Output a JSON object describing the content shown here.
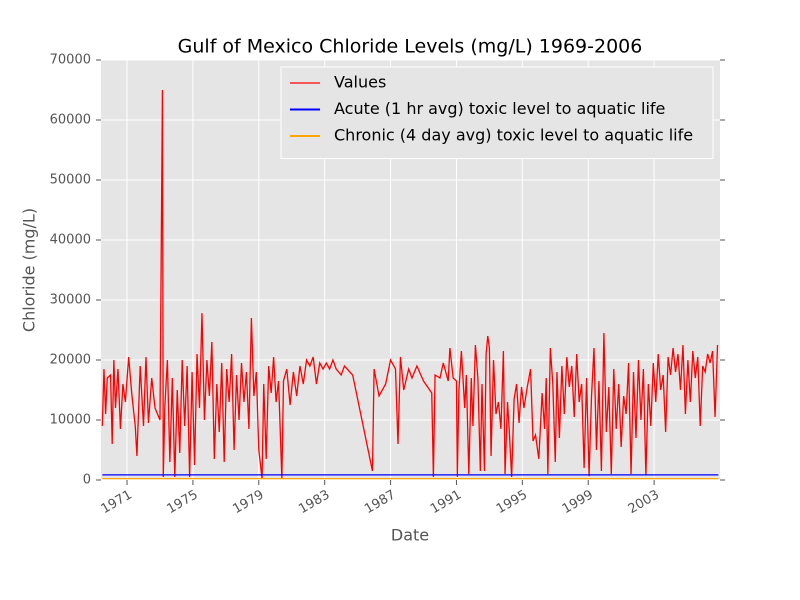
{
  "chart_data": {
    "type": "line",
    "title": "Gulf of Mexico Chloride Levels (mg/L) 1969-2006",
    "x_label": "Date",
    "y_label": "Chloride (mg/L)",
    "xlim": [
      1969.42,
      2007.0
    ],
    "xticks": [
      1971,
      1975,
      1979,
      1983,
      1987,
      1991,
      1995,
      1999,
      2003
    ],
    "ylim": [
      0,
      70000
    ],
    "yticks": [
      0,
      10000,
      20000,
      30000,
      40000,
      50000,
      60000,
      70000
    ],
    "grid": true,
    "legend": "upper right",
    "series": [
      {
        "name": "Values",
        "color": "#ff0000",
        "x": [
          1969.5,
          1969.6,
          1969.7,
          1969.8,
          1970.0,
          1970.1,
          1970.2,
          1970.3,
          1970.45,
          1970.6,
          1970.75,
          1970.9,
          1971.1,
          1971.3,
          1971.5,
          1971.6,
          1971.8,
          1972.0,
          1972.15,
          1972.3,
          1972.5,
          1972.7,
          1973.0,
          1973.15,
          1973.2,
          1973.3,
          1973.45,
          1973.6,
          1973.75,
          1973.9,
          1974.05,
          1974.2,
          1974.35,
          1974.5,
          1974.65,
          1974.8,
          1974.95,
          1975.1,
          1975.25,
          1975.4,
          1975.55,
          1975.7,
          1975.85,
          1976.0,
          1976.15,
          1976.3,
          1976.45,
          1976.6,
          1976.75,
          1976.9,
          1977.05,
          1977.2,
          1977.35,
          1977.5,
          1977.65,
          1977.8,
          1977.95,
          1978.1,
          1978.25,
          1978.4,
          1978.55,
          1978.7,
          1978.85,
          1979.0,
          1979.2,
          1979.3,
          1979.45,
          1979.6,
          1979.75,
          1979.9,
          1980.05,
          1980.2,
          1980.4,
          1980.5,
          1980.7,
          1980.9,
          1981.1,
          1981.3,
          1981.5,
          1981.7,
          1981.9,
          1982.1,
          1982.3,
          1982.5,
          1982.7,
          1982.9,
          1983.1,
          1983.3,
          1983.5,
          1983.7,
          1984.0,
          1984.2,
          1984.7,
          1985.9,
          1986.0,
          1986.3,
          1986.7,
          1987.0,
          1987.3,
          1987.45,
          1987.6,
          1987.8,
          1988.1,
          1988.3,
          1988.6,
          1989.0,
          1989.5,
          1989.6,
          1989.7,
          1990.0,
          1990.2,
          1990.5,
          1990.6,
          1990.8,
          1991.0,
          1991.05,
          1991.15,
          1991.3,
          1991.5,
          1991.6,
          1991.75,
          1991.9,
          1992.0,
          1992.15,
          1992.3,
          1992.45,
          1992.55,
          1992.7,
          1992.8,
          1992.9,
          1993.0,
          1993.1,
          1993.25,
          1993.4,
          1993.55,
          1993.7,
          1993.85,
          1993.95,
          1994.1,
          1994.2,
          1994.35,
          1994.5,
          1994.65,
          1994.8,
          1994.95,
          1995.1,
          1995.3,
          1995.5,
          1995.65,
          1995.8,
          1996.0,
          1996.2,
          1996.35,
          1996.45,
          1996.55,
          1996.7,
          1996.85,
          1997.0,
          1997.1,
          1997.25,
          1997.4,
          1997.55,
          1997.7,
          1997.85,
          1998.0,
          1998.15,
          1998.3,
          1998.45,
          1998.6,
          1998.75,
          1998.9,
          1999.05,
          1999.2,
          1999.35,
          1999.5,
          1999.65,
          1999.8,
          1999.95,
          2000.1,
          2000.25,
          2000.4,
          2000.55,
          2000.7,
          2000.85,
          2001.0,
          2001.15,
          2001.3,
          2001.45,
          2001.6,
          2001.75,
          2001.9,
          2002.05,
          2002.2,
          2002.35,
          2002.5,
          2002.65,
          2002.8,
          2002.95,
          2003.1,
          2003.25,
          2003.4,
          2003.55,
          2003.7,
          2003.85,
          2004.0,
          2004.15,
          2004.3,
          2004.45,
          2004.6,
          2004.75,
          2004.9,
          2005.05,
          2005.2,
          2005.35,
          2005.5,
          2005.65,
          2005.8,
          2005.95,
          2006.1,
          2006.25,
          2006.4,
          2006.55,
          2006.7,
          2006.85
        ],
        "values": [
          9000,
          18500,
          11000,
          17000,
          17500,
          6000,
          20000,
          12000,
          18500,
          8500,
          16000,
          13000,
          20500,
          14000,
          9000,
          4000,
          19000,
          9000,
          20500,
          9500,
          17000,
          12000,
          10000,
          65000,
          500,
          12500,
          20000,
          3000,
          17000,
          500,
          15000,
          4500,
          20000,
          9000,
          19000,
          500,
          18000,
          2500,
          21000,
          12000,
          27800,
          10000,
          20000,
          14000,
          23000,
          3500,
          16000,
          8000,
          19500,
          3000,
          18500,
          13000,
          21000,
          5000,
          17500,
          10000,
          19500,
          13000,
          18000,
          8500,
          27000,
          14000,
          18000,
          5000,
          200,
          16000,
          3500,
          19000,
          14500,
          20500,
          13000,
          16500,
          200,
          16500,
          18500,
          12500,
          18000,
          14000,
          19000,
          16000,
          20000,
          19000,
          20500,
          16000,
          19500,
          18500,
          19500,
          18500,
          20000,
          18500,
          17500,
          19000,
          17500,
          1500,
          18500,
          14000,
          16000,
          20000,
          18500,
          6000,
          20500,
          15000,
          18500,
          17000,
          19000,
          16500,
          14500,
          500,
          17500,
          17000,
          19500,
          16500,
          22000,
          17000,
          16500,
          500,
          15000,
          21500,
          12000,
          17500,
          1000,
          17000,
          9000,
          22500,
          17000,
          1500,
          16000,
          1500,
          21000,
          24000,
          22000,
          4000,
          20000,
          11000,
          13000,
          8500,
          21500,
          1000,
          13000,
          8500,
          500,
          13500,
          16000,
          9500,
          15500,
          12000,
          15500,
          18500,
          6500,
          7500,
          3500,
          14500,
          8500,
          17000,
          1000,
          22000,
          16000,
          3000,
          18000,
          7000,
          19000,
          11000,
          20500,
          15500,
          19000,
          10500,
          21000,
          13000,
          16000,
          2000,
          17000,
          600,
          14000,
          22000,
          5000,
          16500,
          1500,
          24500,
          8000,
          15500,
          1000,
          18500,
          8500,
          16000,
          5500,
          14000,
          11000,
          19500,
          1000,
          18000,
          7000,
          20000,
          10000,
          18500,
          800,
          16000,
          9000,
          19500,
          13000,
          21000,
          15000,
          17500,
          8000,
          20500,
          17500,
          22000,
          18000,
          21000,
          15000,
          22500,
          11000,
          20000,
          13000,
          21500,
          17000,
          20500,
          9000,
          19000,
          18000,
          21000,
          19500,
          21500,
          10500,
          22500
        ]
      },
      {
        "name": "Acute (1 hr avg) toxic level to aquatic life",
        "color": "#0000ff",
        "x": [
          1969.5,
          2006.9
        ],
        "values": [
          860,
          860
        ]
      },
      {
        "name": "Chronic (4 day avg) toxic level to aquatic life",
        "color": "#ffa500",
        "x": [
          1969.5,
          2006.9
        ],
        "values": [
          230,
          230
        ]
      }
    ]
  }
}
